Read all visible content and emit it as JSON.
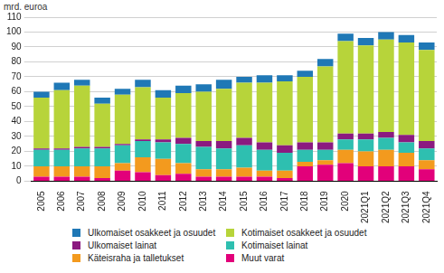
{
  "chart_data": {
    "type": "bar",
    "stacked": true,
    "grid": true,
    "y_label": "mrd. euroa",
    "categories": [
      "2005",
      "2006",
      "2007",
      "2008",
      "2009",
      "2010",
      "2011",
      "2012",
      "2013",
      "2014",
      "2015",
      "2016",
      "2017",
      "2018",
      "2019",
      "2020",
      "2021Q1",
      "2021Q2",
      "2021Q3",
      "2021Q4"
    ],
    "ylim": [
      0,
      110
    ],
    "yticks": [
      0,
      10,
      20,
      30,
      40,
      50,
      60,
      70,
      80,
      90,
      100,
      110
    ],
    "series": [
      {
        "name": "Muut varat",
        "color": "#e2007a",
        "values": [
          3,
          3,
          3,
          2,
          7,
          6,
          4,
          5,
          3,
          3,
          3,
          3,
          2,
          10,
          11,
          12,
          10,
          10,
          10,
          8
        ]
      },
      {
        "name": "Käteisraha ja talletukset",
        "color": "#f39a1e",
        "values": [
          7,
          7,
          7,
          8,
          5,
          10,
          11,
          7,
          5,
          5,
          6,
          4,
          5,
          3,
          3,
          9,
          10,
          11,
          9,
          6
        ]
      },
      {
        "name": "Kotimaiset lainat",
        "color": "#2ebfb0",
        "values": [
          11,
          11,
          12,
          12,
          12,
          11,
          11,
          13,
          15,
          14,
          15,
          14,
          12,
          8,
          7,
          7,
          8,
          8,
          7,
          8
        ]
      },
      {
        "name": "Ulkomaiset lainat",
        "color": "#8b1a80",
        "values": [
          1,
          1,
          1,
          1,
          1,
          1,
          2,
          4,
          4,
          5,
          5,
          5,
          5,
          5,
          5,
          4,
          4,
          4,
          5,
          5
        ]
      },
      {
        "name": "Kotimaiset osakkeet ja osuudet",
        "color": "#b7d43a",
        "values": [
          34,
          39,
          41,
          29,
          33,
          35,
          28,
          30,
          33,
          35,
          37,
          40,
          43,
          44,
          51,
          62,
          59,
          62,
          62,
          61
        ]
      },
      {
        "name": "Ulkomaiset osakkeet ja osuudet",
        "color": "#1f78b6",
        "values": [
          4,
          5,
          4,
          4,
          4,
          5,
          5,
          5,
          5,
          6,
          4,
          5,
          4,
          4,
          5,
          5,
          5,
          5,
          5,
          5
        ]
      }
    ]
  }
}
